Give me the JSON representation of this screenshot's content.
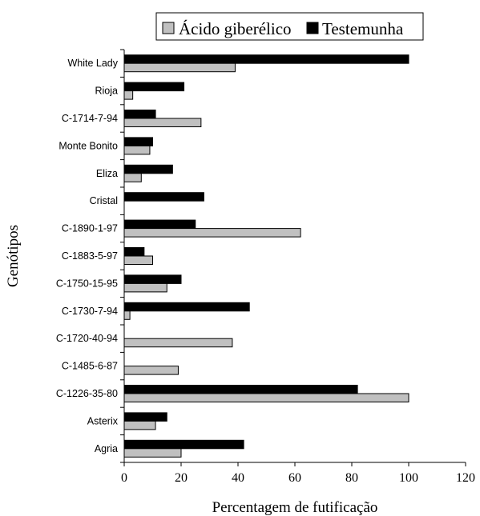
{
  "chart_data": {
    "type": "bar",
    "orientation": "horizontal",
    "categories": [
      "White Lady",
      "Rioja",
      "C-1714-7-94",
      "Monte Bonito",
      "Eliza",
      "Cristal",
      "C-1890-1-97",
      "C-1883-5-97",
      "C-1750-15-95",
      "C-1730-7-94",
      "C-1720-40-94",
      "C-1485-6-87",
      "C-1226-35-80",
      "Asterix",
      "Agria"
    ],
    "series": [
      {
        "name": "Testemunha",
        "color": "#000000",
        "values": [
          100,
          21,
          11,
          10,
          17,
          28,
          25,
          7,
          20,
          44,
          0,
          0,
          82,
          15,
          42
        ]
      },
      {
        "name": "Ácido giberélico",
        "color": "#c0c0c0",
        "values": [
          39,
          3,
          27,
          9,
          6,
          0,
          62,
          10,
          15,
          2,
          38,
          19,
          100,
          11,
          20
        ]
      }
    ],
    "legend_order": [
      "Ácido giberélico",
      "Testemunha"
    ],
    "legend_position": "top",
    "xlabel": "Percentagem de futificação",
    "ylabel": "Genótipos",
    "xlim": [
      0,
      120
    ],
    "xticks": [
      0,
      20,
      40,
      60,
      80,
      100,
      120
    ],
    "grid": false
  }
}
